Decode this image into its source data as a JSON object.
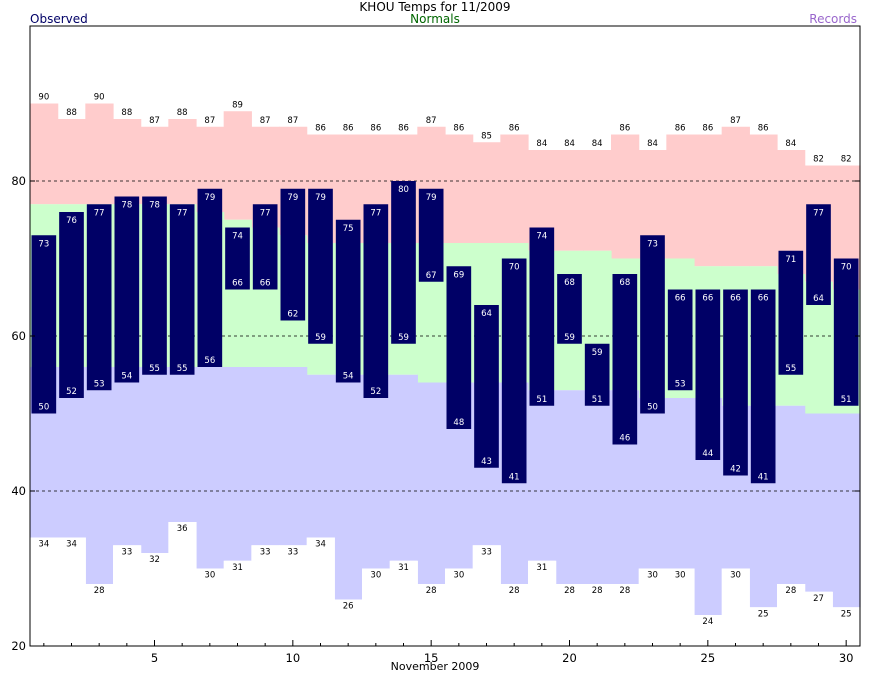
{
  "chart_data": {
    "type": "bar",
    "title": "KHOU Temps for 11/2009",
    "xlabel": "November 2009",
    "ylabel": "",
    "legend": {
      "observed": "Observed",
      "normals": "Normals",
      "records": "Records"
    },
    "colors": {
      "observed": "#000066",
      "normal_band": "#ccffcc",
      "record_high_band": "#ffcccc",
      "record_low_band": "#ccccff",
      "observed_label": "#000066",
      "normals_label": "#006600",
      "records_label": "#9966cc",
      "grid": "#000000"
    },
    "ylim": [
      20,
      100
    ],
    "yticks": [
      20,
      40,
      60,
      80
    ],
    "xlim": [
      0.5,
      30.5
    ],
    "xticks": [
      5,
      10,
      15,
      20,
      25,
      30
    ],
    "grid_lines": [
      40,
      60,
      80
    ],
    "days": [
      1,
      2,
      3,
      4,
      5,
      6,
      7,
      8,
      9,
      10,
      11,
      12,
      13,
      14,
      15,
      16,
      17,
      18,
      19,
      20,
      21,
      22,
      23,
      24,
      25,
      26,
      27,
      28,
      29,
      30
    ],
    "record_high": [
      90,
      88,
      90,
      88,
      87,
      88,
      87,
      89,
      87,
      87,
      86,
      86,
      86,
      86,
      87,
      86,
      85,
      86,
      84,
      84,
      84,
      86,
      84,
      86,
      86,
      87,
      86,
      84,
      82,
      82
    ],
    "record_low": [
      34,
      34,
      28,
      33,
      32,
      36,
      30,
      31,
      33,
      33,
      34,
      26,
      30,
      31,
      28,
      30,
      33,
      28,
      31,
      28,
      28,
      28,
      30,
      30,
      24,
      30,
      25,
      28,
      27,
      25
    ],
    "normal_high": [
      77,
      77,
      77,
      77,
      77,
      77,
      76,
      75,
      74,
      73,
      72,
      72,
      72,
      72,
      72,
      72,
      72,
      72,
      71,
      71,
      71,
      70,
      70,
      70,
      69,
      69,
      69,
      68,
      67,
      66
    ],
    "normal_low": [
      56,
      56,
      56,
      56,
      56,
      56,
      56,
      56,
      56,
      56,
      55,
      55,
      55,
      55,
      54,
      54,
      54,
      54,
      53,
      53,
      53,
      53,
      52,
      52,
      52,
      51,
      51,
      51,
      50,
      50
    ],
    "observed_high": [
      73,
      76,
      77,
      78,
      78,
      77,
      79,
      74,
      77,
      79,
      79,
      75,
      77,
      80,
      79,
      69,
      64,
      70,
      74,
      68,
      59,
      68,
      73,
      66,
      66,
      66,
      66,
      71,
      77,
      70
    ],
    "observed_low": [
      50,
      52,
      53,
      54,
      55,
      55,
      56,
      66,
      66,
      62,
      59,
      54,
      52,
      59,
      67,
      48,
      43,
      41,
      51,
      59,
      51,
      46,
      50,
      53,
      44,
      42,
      41,
      55,
      64,
      51
    ]
  }
}
